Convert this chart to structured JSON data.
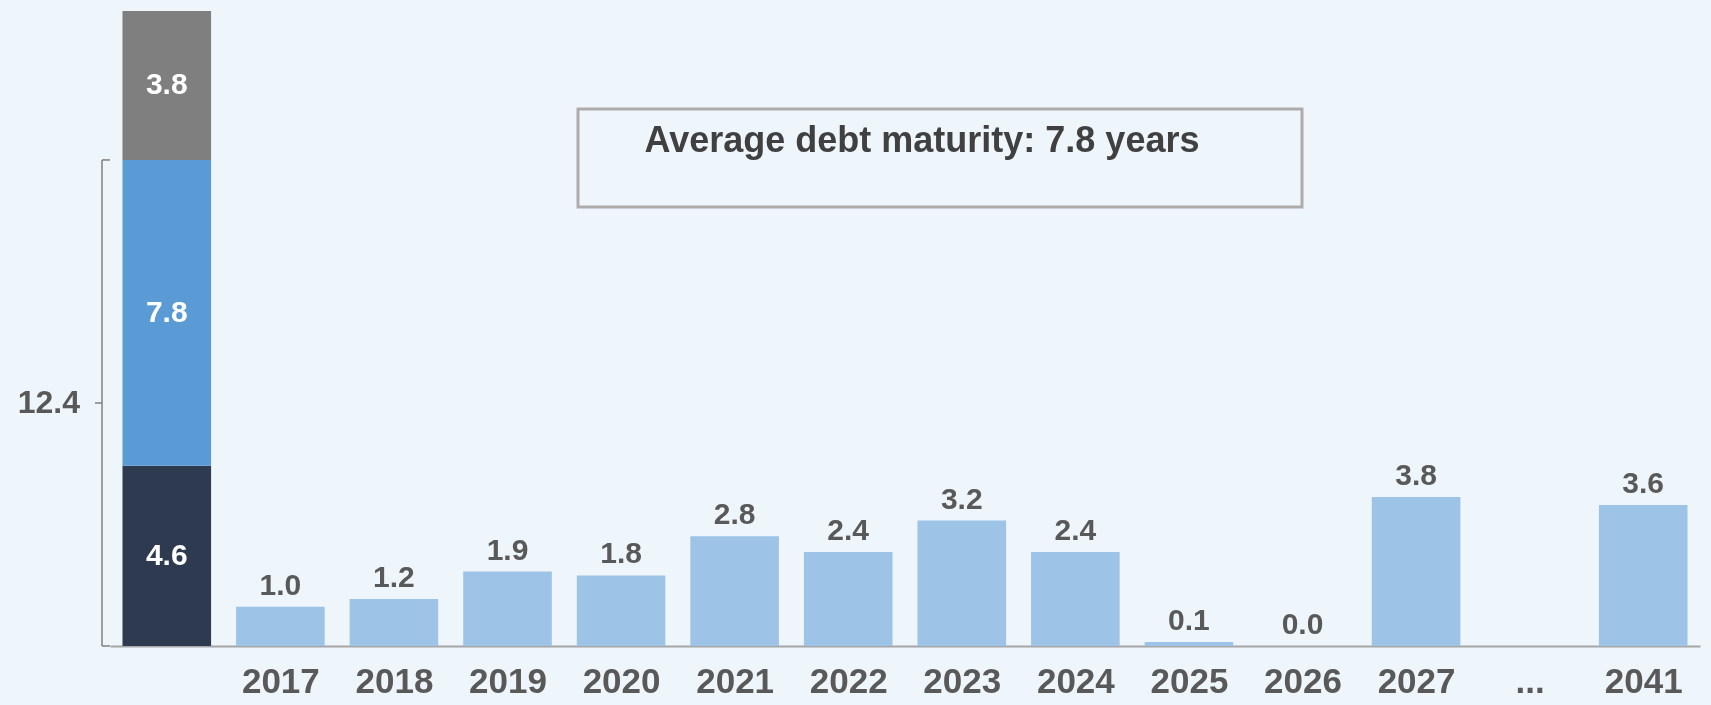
{
  "chart_data": {
    "type": "bar",
    "stacked": true,
    "categories": [
      null,
      "2017",
      "2018",
      "2019",
      "2020",
      "2021",
      "2022",
      "2023",
      "2024",
      "2025",
      "2026",
      "2027",
      "...",
      "2041"
    ],
    "series": [
      {
        "color": "#2e3a4f",
        "values": [
          4.6,
          null,
          null,
          null,
          null,
          null,
          null,
          null,
          null,
          null,
          null,
          null,
          null,
          null
        ],
        "value_labels": [
          "4.6",
          null,
          null,
          null,
          null,
          null,
          null,
          null,
          null,
          null,
          null,
          null,
          null,
          null
        ]
      },
      {
        "color": "#5b9bd5",
        "values": [
          7.8,
          null,
          null,
          null,
          null,
          null,
          null,
          null,
          null,
          null,
          null,
          null,
          null,
          null
        ],
        "value_labels": [
          "7.8",
          null,
          null,
          null,
          null,
          null,
          null,
          null,
          null,
          null,
          null,
          null,
          null,
          null
        ]
      },
      {
        "color": "#7f7f7f",
        "values": [
          3.8,
          null,
          null,
          null,
          null,
          null,
          null,
          null,
          null,
          null,
          null,
          null,
          null,
          null
        ],
        "value_labels": [
          "3.8",
          null,
          null,
          null,
          null,
          null,
          null,
          null,
          null,
          null,
          null,
          null,
          null,
          null
        ]
      },
      {
        "color": "#9dc3e6",
        "values": [
          null,
          1.0,
          1.2,
          1.9,
          1.8,
          2.8,
          2.4,
          3.2,
          2.4,
          0.1,
          0.0,
          3.8,
          null,
          3.6
        ],
        "value_labels": [
          null,
          "1.0",
          "1.2",
          "1.9",
          "1.8",
          "2.8",
          "2.4",
          "3.2",
          "2.4",
          "0.1",
          "0.0",
          "3.8",
          null,
          "3.6"
        ]
      }
    ],
    "annotations": [
      "12.4",
      "Average debt maturity: 7.8 years"
    ]
  }
}
